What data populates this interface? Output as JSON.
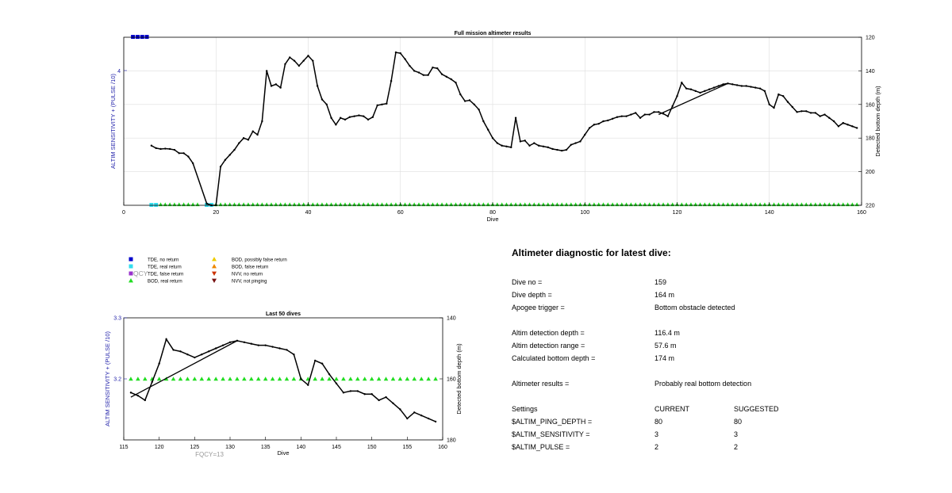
{
  "chart_data": [
    {
      "type": "line",
      "title": "Full mission altimeter results",
      "xlabel": "Dive",
      "ylabel_left": "ALTIM SENSITIVITY + (PULSE /10)",
      "ylabel_right": "Detected bottom depth (m)",
      "xlim": [
        0,
        160
      ],
      "xticks": [
        0,
        20,
        40,
        60,
        80,
        100,
        120,
        140,
        160
      ],
      "ylim_right": [
        220,
        120
      ],
      "yticks_right": [
        120,
        140,
        160,
        180,
        200,
        220
      ],
      "ytick_left_label": "4",
      "grid": true,
      "series": [
        {
          "values": [
            [
              6,
              184.5
            ],
            [
              7,
              186
            ],
            [
              8,
              186.5
            ],
            [
              9,
              186.3
            ],
            [
              10,
              186.5
            ],
            [
              11,
              187
            ],
            [
              12,
              189
            ],
            [
              13,
              189
            ],
            [
              14,
              191
            ],
            [
              15,
              195
            ],
            [
              18,
              219
            ],
            [
              19,
              220
            ],
            [
              20,
              220
            ],
            [
              21,
              197
            ],
            [
              22,
              193
            ],
            [
              23,
              190
            ],
            [
              24,
              187
            ],
            [
              25,
              183
            ],
            [
              26,
              180
            ],
            [
              27,
              181
            ],
            [
              28,
              176
            ],
            [
              29,
              178
            ],
            [
              30,
              170
            ],
            [
              31,
              140
            ],
            [
              32,
              149
            ],
            [
              33,
              148
            ],
            [
              34,
              150
            ],
            [
              35,
              136
            ],
            [
              36,
              132
            ],
            [
              37,
              134
            ],
            [
              38,
              137
            ],
            [
              39,
              134
            ],
            [
              40,
              131
            ],
            [
              41,
              134
            ],
            [
              42,
              149
            ],
            [
              43,
              157
            ],
            [
              44,
              160
            ],
            [
              45,
              168
            ],
            [
              46,
              172
            ],
            [
              47,
              168
            ],
            [
              48,
              169
            ],
            [
              49,
              167.5
            ],
            [
              50,
              167
            ],
            [
              51,
              166.5
            ],
            [
              52,
              167
            ],
            [
              53,
              169
            ],
            [
              54,
              167.5
            ],
            [
              55,
              160.5
            ],
            [
              56,
              160
            ],
            [
              57,
              159.5
            ],
            [
              58,
              146
            ],
            [
              59,
              129
            ],
            [
              60,
              129.5
            ],
            [
              61,
              133
            ],
            [
              62,
              137
            ],
            [
              63,
              140
            ],
            [
              64,
              141
            ],
            [
              65,
              142.5
            ],
            [
              66,
              142.5
            ],
            [
              67,
              138
            ],
            [
              68,
              138.5
            ],
            [
              69,
              142
            ],
            [
              70,
              143.5
            ],
            [
              71,
              145
            ],
            [
              72,
              147
            ],
            [
              73,
              154
            ],
            [
              74,
              158
            ],
            [
              75,
              157.5
            ],
            [
              76,
              160
            ],
            [
              77,
              163
            ],
            [
              78,
              170
            ],
            [
              79,
              175
            ],
            [
              80,
              180
            ],
            [
              81,
              183
            ],
            [
              82,
              184.5
            ],
            [
              83,
              185
            ],
            [
              84,
              185.5
            ],
            [
              85,
              168
            ],
            [
              86,
              182
            ],
            [
              87,
              181.5
            ],
            [
              88,
              184.5
            ],
            [
              89,
              183
            ],
            [
              90,
              184.5
            ],
            [
              91,
              185
            ],
            [
              92,
              185.5
            ],
            [
              93,
              186.5
            ],
            [
              94,
              187
            ],
            [
              95,
              187.5
            ],
            [
              96,
              187
            ],
            [
              97,
              184
            ],
            [
              98,
              183
            ],
            [
              99,
              182
            ],
            [
              100,
              178
            ],
            [
              101,
              174
            ],
            [
              102,
              172
            ],
            [
              103,
              171.5
            ],
            [
              104,
              170
            ],
            [
              105,
              169.5
            ],
            [
              106,
              168.5
            ],
            [
              107,
              167.5
            ],
            [
              108,
              167
            ],
            [
              109,
              167
            ],
            [
              110,
              166
            ],
            [
              111,
              165
            ],
            [
              112,
              168
            ],
            [
              113,
              166
            ],
            [
              114,
              166
            ],
            [
              115,
              164.5
            ],
            [
              116,
              164.5
            ],
            [
              117,
              165.5
            ],
            [
              118,
              167
            ],
            [
              119,
              161
            ],
            [
              120,
              155
            ],
            [
              121,
              147
            ],
            [
              122,
              150.5
            ],
            [
              123,
              151
            ],
            [
              124,
              152
            ],
            [
              125,
              153
            ],
            [
              126,
              152
            ],
            [
              127,
              151
            ],
            [
              128,
              150
            ],
            [
              129,
              149
            ],
            [
              130,
              148
            ],
            [
              131,
              147.5
            ],
            [
              132,
              148
            ],
            [
              133,
              148.5
            ],
            [
              134,
              149
            ],
            [
              135,
              149
            ],
            [
              136,
              149.5
            ],
            [
              137,
              150
            ],
            [
              138,
              150.5
            ],
            [
              139,
              152
            ],
            [
              140,
              160
            ],
            [
              141,
              162
            ],
            [
              142,
              154
            ],
            [
              143,
              155
            ],
            [
              144,
              158.5
            ],
            [
              145,
              161.5
            ],
            [
              146,
              164.5
            ],
            [
              147,
              164
            ],
            [
              148,
              164
            ],
            [
              149,
              165
            ],
            [
              150,
              165
            ],
            [
              151,
              167
            ],
            [
              152,
              166
            ],
            [
              153,
              168
            ],
            [
              154,
              170
            ],
            [
              155,
              173
            ],
            [
              156,
              171
            ],
            [
              157,
              172
            ],
            [
              158,
              173
            ],
            [
              159,
              174
            ]
          ]
        },
        {
          "values": [
            [
              116,
              166
            ],
            [
              131,
              147.5
            ]
          ]
        }
      ],
      "markers": {
        "tde_no_return": [
          2,
          3,
          4,
          5
        ],
        "tde_real_return": [
          6,
          7,
          18,
          19
        ],
        "bod_real_return_start": 8,
        "bod_real_return_end": 159
      }
    },
    {
      "type": "line",
      "title": "Last 50 dives",
      "xlabel": "Dive",
      "ylabel_left": "ALTIM SENSITIVITY + (PULSE /10)",
      "ylabel_right": "Detected bottom depth (m)",
      "xlim": [
        115,
        160
      ],
      "xticks": [
        115,
        120,
        125,
        130,
        135,
        140,
        145,
        150,
        155,
        160
      ],
      "ylim_left": [
        3.1,
        3.3
      ],
      "yticks_left": [
        3.2,
        3.3
      ],
      "ytick_left_labels": [
        "3.2",
        "3.3"
      ],
      "ylim_right": [
        180,
        140
      ],
      "yticks_right": [
        140,
        160,
        180
      ],
      "bod_real_return_level": 3.2,
      "annotation": "FQCY=13"
    }
  ],
  "legend": {
    "items": [
      {
        "label": "TDE, no return",
        "color": "#0000cc",
        "shape": "square"
      },
      {
        "label": "TDE, real return",
        "color": "#33ddee",
        "shape": "square"
      },
      {
        "label": "TDE, false return",
        "color": "#9933cc",
        "shape": "square"
      },
      {
        "label": "BOD, real return",
        "color": "#22dd22",
        "shape": "triangle-up"
      },
      {
        "label": "BOD, possibly false return",
        "color": "#eecc00",
        "shape": "triangle-up"
      },
      {
        "label": "BOD, false return",
        "color": "#ee8800",
        "shape": "triangle-up"
      },
      {
        "label": "NVV, no return",
        "color": "#cc3300",
        "shape": "triangle-down"
      },
      {
        "label": "NVV, not pinging",
        "color": "#771111",
        "shape": "triangle-down"
      }
    ],
    "overlay_text": "QCY"
  },
  "diagnostic": {
    "title": "Altimeter diagnostic for latest dive:",
    "dive_no": {
      "label": "Dive no =",
      "value": "159"
    },
    "dive_depth": {
      "label": "Dive depth =",
      "value": "164 m"
    },
    "apogee": {
      "label": "Apogee trigger =",
      "value": "Bottom obstacle detected"
    },
    "det_depth": {
      "label": "Altim detection depth =",
      "value": "116.4 m"
    },
    "det_range": {
      "label": "Altim detection range =",
      "value": "57.6 m"
    },
    "calc_depth": {
      "label": "Calculated bottom depth =",
      "value": "174 m"
    },
    "results": {
      "label": "Altimeter results =",
      "value": "Probably real bottom detection"
    },
    "settings": {
      "header": {
        "label": "Settings",
        "current": "CURRENT",
        "suggested": "SUGGESTED"
      },
      "ping_depth": {
        "label": "$ALTIM_PING_DEPTH =",
        "current": "80",
        "suggested": "80"
      },
      "sensitivity": {
        "label": "$ALTIM_SENSITIVITY =",
        "current": "3",
        "suggested": "3"
      },
      "pulse": {
        "label": "$ALTIM_PULSE =",
        "current": "2",
        "suggested": "2"
      }
    }
  },
  "colors": {
    "left_axis": "#2222aa",
    "grid": "#dddddd",
    "annotation": "#999999",
    "line": "#000000"
  }
}
